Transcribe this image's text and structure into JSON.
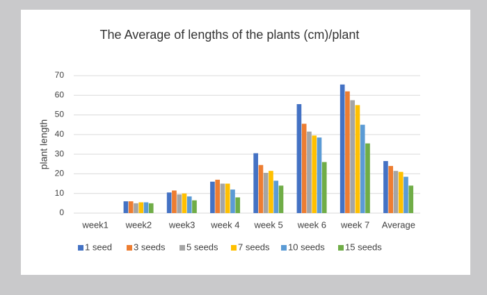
{
  "chart_data": {
    "type": "bar",
    "title": "The Average of lengths of the plants (cm)/plant",
    "y_label": "plant length",
    "categories": [
      "week1",
      "week2",
      "week3",
      "week 4",
      "week 5",
      "week 6",
      "week 7",
      "Average"
    ],
    "series": [
      {
        "name": "1 seed",
        "color": "#4472c4",
        "values": [
          0,
          6,
          10.5,
          16,
          30.5,
          55.5,
          65.5,
          26.5
        ]
      },
      {
        "name": "3 seeds",
        "color": "#ed7d31",
        "values": [
          0,
          6,
          11.5,
          17,
          24.5,
          45.5,
          62,
          24
        ]
      },
      {
        "name": "5 seeds",
        "color": "#a5a5a5",
        "values": [
          0,
          5,
          9.5,
          15,
          20.5,
          41.5,
          57.5,
          21.5
        ]
      },
      {
        "name": "7 seeds",
        "color": "#ffc000",
        "values": [
          0,
          5.5,
          10,
          15,
          21.5,
          39.5,
          55,
          21
        ]
      },
      {
        "name": "10 seeds",
        "color": "#5b9bd5",
        "values": [
          0,
          5.5,
          8.5,
          12,
          16.5,
          38.5,
          45,
          18.5
        ]
      },
      {
        "name": "15 seeds",
        "color": "#70ad47",
        "values": [
          0,
          5,
          6.5,
          8,
          14,
          26,
          35.5,
          14
        ]
      }
    ],
    "ylim": [
      0,
      70
    ],
    "yticks": [
      0,
      10,
      20,
      30,
      40,
      50,
      60,
      70
    ],
    "grid": true,
    "legend": "bottom"
  }
}
